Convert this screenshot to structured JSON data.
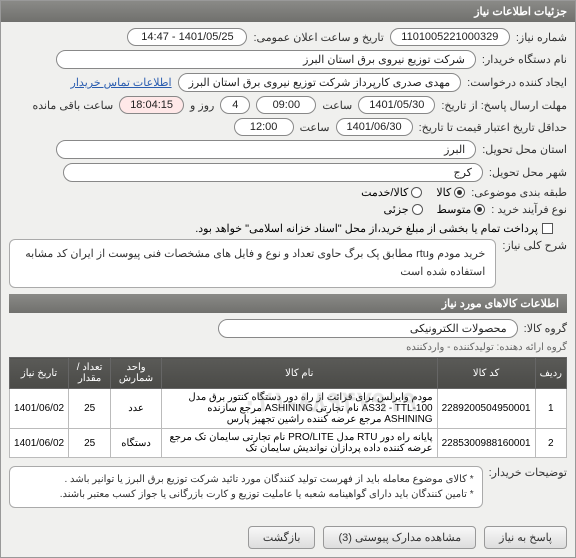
{
  "header": {
    "title": "جزئیات اطلاعات نیاز"
  },
  "fields": {
    "need_no_label": "شماره نیاز:",
    "need_no": "1101005221000329",
    "announce_label": "تاریخ و ساعت اعلان عمومی:",
    "announce": "1401/05/25 - 14:47",
    "buyer_org_label": "نام دستگاه خریدار:",
    "buyer_org": "شرکت توزیع نیروی برق استان البرز",
    "requester_label": "ایجاد کننده درخواست:",
    "requester": "مهدی صدری کارپرداز شرکت توزیع نیروی برق استان البرز",
    "contact_link": "اطلاعات تماس خریدار",
    "deadline_label": "مهلت ارسال پاسخ: از تاریخ:",
    "deadline_date": "1401/05/30",
    "time_label": "ساعت",
    "deadline_time": "09:00",
    "days_label": "روز و",
    "days": "4",
    "remain": "18:04:15",
    "remain_label": "ساعت باقی مانده",
    "validity_label": "حداقل تاریخ اعتبار قیمت تا تاریخ:",
    "validity_date": "1401/06/30",
    "validity_time": "12:00",
    "province_label": "استان محل تحویل:",
    "province": "البرز",
    "city_label": "شهر محل تحویل:",
    "city": "کرج",
    "category_label": "طبقه بندی موضوعی:",
    "cat_goods": "کالا",
    "cat_service": "کالا/خدمت",
    "process_label": "نوع فرآیند خرید :",
    "proc_medium": "متوسط",
    "proc_small": "جزئی",
    "pay_note": "پرداخت تمام یا بخشی از مبلغ خرید،از محل \"اسناد خزانه اسلامی\" خواهد بود.",
    "desc_label": "شرح کلی نیاز:",
    "desc": "خرید مودم وrtu مطابق پک برگ حاوی تعداد و نوع و فایل های مشخصات فنی پیوست از ایران کد مشابه استفاده شده است",
    "notes_label": "توضیحات خریدار:",
    "note1": "* کالای موضوع معامله باید از فهرست تولید کنندگان مورد تائید شرکت توزیع برق البرز یا توانیر باشد .",
    "note2": "* تامین کنندگان باید دارای گواهینامه شعبه یا عاملیت توزیع و کارت بازرگانی یا جواز کسب معتبر باشند."
  },
  "goods_header": "اطلاعات کالاهای مورد نیاز",
  "group_label": "گروه کالا:",
  "group": "محصولات الکترونیکی",
  "seller_note": "گروه ارائه دهنده: تولیدکننده - واردکننده",
  "table": {
    "cols": [
      "ردیف",
      "کد کالا",
      "نام کالا",
      "واحد شمارش",
      "تعداد / مقدار",
      "تاریخ نیاز"
    ],
    "rows": [
      [
        "1",
        "2289200504950001",
        "مودم وایرلس برای قرائت از راه دور دستگاه کنتور برق مدل AS32 - TTL-100 نام تجارتی ASHINING مرجع سازنده ASHINING مرجع عرضه کننده راشین تجهیز پارس",
        "عدد",
        "25",
        "1401/06/02"
      ],
      [
        "2",
        "2285300988160001",
        "پایانه راه دور RTU مدل PRO/LITE نام تجارتی سایمان تک مرجع عرضه کننده داده پردازان نواندیش سایمان تک",
        "دستگاه",
        "25",
        "1401/06/02"
      ]
    ]
  },
  "watermark": "۰۲۱-۸۸۹۴۷۹۱۹",
  "buttons": {
    "reply": "پاسخ به نیاز",
    "attachments": "مشاهده مدارک پیوستی (3)",
    "back": "بازگشت"
  }
}
